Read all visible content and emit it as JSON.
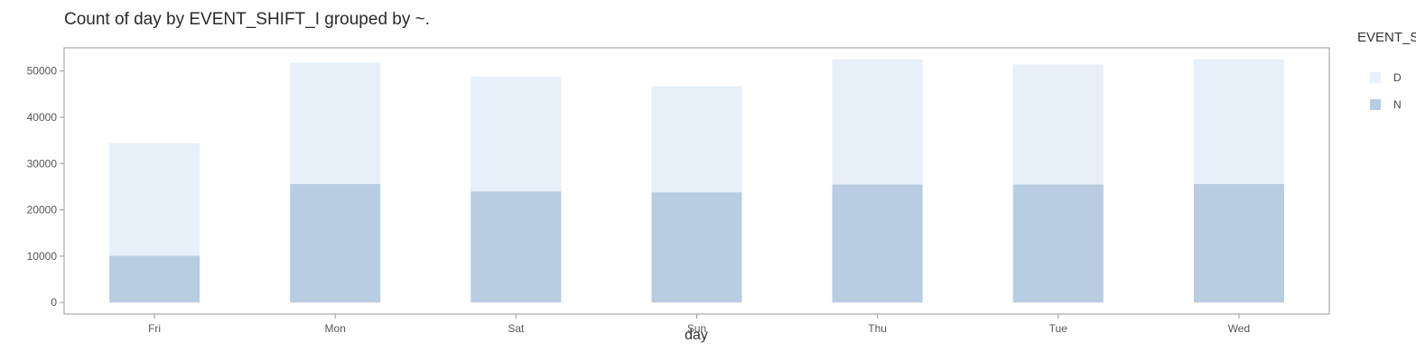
{
  "chart_data": {
    "type": "bar",
    "stacked": true,
    "title": "Count of day by EVENT_SHIFT_I grouped by ~.",
    "xlabel": "day",
    "ylabel": "",
    "categories": [
      "Fri",
      "Mon",
      "Sat",
      "Sun",
      "Thu",
      "Tue",
      "Wed"
    ],
    "yticks": [
      0,
      10000,
      20000,
      30000,
      40000,
      50000
    ],
    "ylim": [
      -2500,
      55000
    ],
    "legend": {
      "title": "EVENT_S",
      "placement": "right"
    },
    "series": [
      {
        "name": "N",
        "color": "#b8cce2",
        "values": [
          10100,
          25600,
          24000,
          23800,
          25500,
          25500,
          25600
        ]
      },
      {
        "name": "D",
        "color": "#e7eff8",
        "values": [
          24300,
          26200,
          24800,
          22900,
          27000,
          25900,
          26900
        ]
      }
    ],
    "legend_order": [
      "D",
      "N"
    ],
    "grid": false,
    "frame_color": "#999999"
  }
}
